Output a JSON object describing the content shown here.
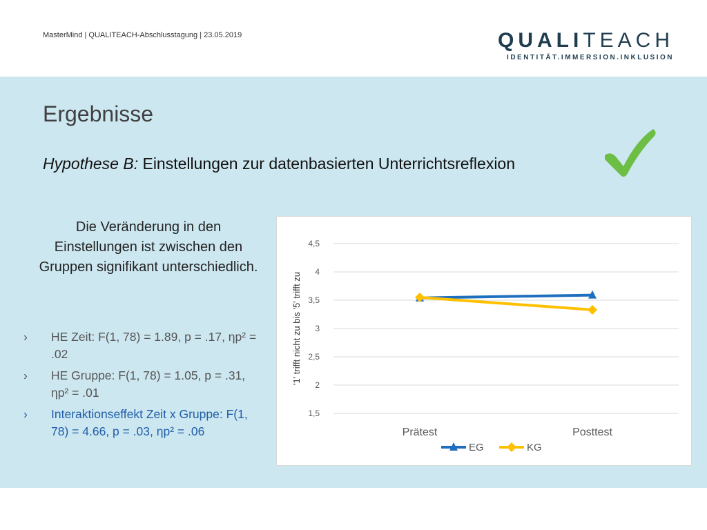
{
  "header": {
    "info": "MasterMind | QUALITEACH-Abschlusstagung | 23.05.2019",
    "logo_bold": "QUALI",
    "logo_rest": "TEACH",
    "logo_sub": "IDENTITÄT.IMMERSION.INKLUSION"
  },
  "slide": {
    "title": "Ergebnisse",
    "subtitle_hyp": "Hypothese B:",
    "subtitle_rest": " Einstellungen zur datenbasierten Unterrichtsreflexion",
    "summary": "Die Veränderung in den Einstellungen ist zwischen den Gruppen signifikant unterschiedlich.",
    "bullet_marker": "›",
    "bullets": [
      {
        "label": "HE Zeit: ",
        "stat": "F(1, 78) = 1.89, p = .17, ηp² = .02"
      },
      {
        "label": "HE Gruppe: ",
        "stat": "F(1, 78) = 1.05, p = .31, ηp² = .01"
      },
      {
        "label": "Interaktionseffekt Zeit x Gruppe: ",
        "stat": "F(1, 78) = 4.66, p = .03, ηp² = .06"
      }
    ]
  },
  "colors": {
    "panel": "#cde7f0",
    "eg": "#1f6fbf",
    "kg": "#ffc000",
    "check": "#6cbe45",
    "highlight": "#1e5ea8"
  },
  "chart_data": {
    "type": "line",
    "categories": [
      "Prätest",
      "Posttest"
    ],
    "series": [
      {
        "name": "EG",
        "values": [
          3.54,
          3.59
        ],
        "marker": "triangle"
      },
      {
        "name": "KG",
        "values": [
          3.55,
          3.33
        ],
        "marker": "diamond"
      }
    ],
    "ylabel": "'1' trifft  nicht zu bis '5' trifft zu",
    "ylim": [
      1.5,
      4.5
    ],
    "yticks": [
      "1,5",
      "2",
      "2,5",
      "3",
      "3,5",
      "4",
      "4,5"
    ],
    "grid": true,
    "legend": "bottom"
  }
}
